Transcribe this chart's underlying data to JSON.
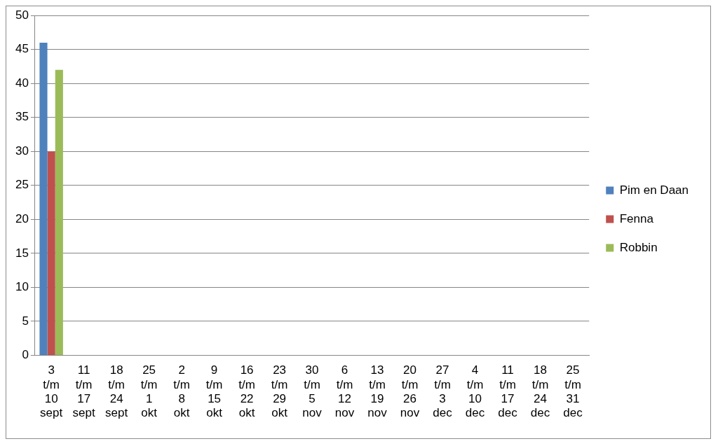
{
  "chart_data": {
    "type": "bar",
    "categories": [
      "3 t/m 10 sept",
      "11 t/m 17 sept",
      "18 t/m 24 sept",
      "25 t/m 1 okt",
      "2 t/m 8 okt",
      "9 t/m 15 okt",
      "16 t/m 22 okt",
      "23 t/m 29 okt",
      "30 t/m 5 nov",
      "6 t/m 12 nov",
      "13 t/m 19 nov",
      "20 t/m 26 nov",
      "27 t/m 3 dec",
      "4 t/m 10 dec",
      "11 t/m 17 dec",
      "18 t/m 24 dec",
      "25 t/m 31 dec"
    ],
    "series": [
      {
        "name": "Pim en Daan",
        "color": "#4f81bd",
        "values": [
          46,
          null,
          null,
          null,
          null,
          null,
          null,
          null,
          null,
          null,
          null,
          null,
          null,
          null,
          null,
          null,
          null
        ]
      },
      {
        "name": "Fenna",
        "color": "#c0504d",
        "values": [
          30,
          null,
          null,
          null,
          null,
          null,
          null,
          null,
          null,
          null,
          null,
          null,
          null,
          null,
          null,
          null,
          null
        ]
      },
      {
        "name": "Robbin",
        "color": "#9bbb59",
        "values": [
          42,
          null,
          null,
          null,
          null,
          null,
          null,
          null,
          null,
          null,
          null,
          null,
          null,
          null,
          null,
          null,
          null
        ]
      }
    ],
    "ylim": [
      0,
      50
    ],
    "yticks": [
      0,
      5,
      10,
      15,
      20,
      25,
      30,
      35,
      40,
      45,
      50
    ],
    "grid": "y",
    "legend": "right"
  }
}
